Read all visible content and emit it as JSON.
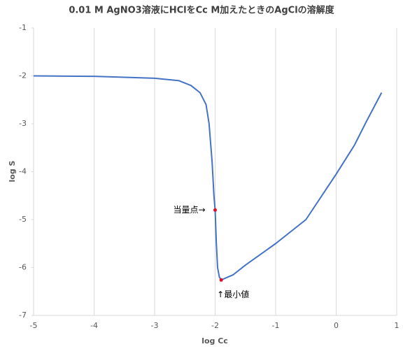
{
  "chart_data": {
    "type": "line",
    "title": "0.01 M AgNO3溶液にHClをCc M加えたときのAgClの溶解度",
    "x_label": "log Cc",
    "y_label": "log S",
    "xlim": [
      -5,
      1
    ],
    "xticks": [
      -5,
      -4,
      -3,
      -2,
      -1,
      0,
      1
    ],
    "ylim": [
      -7,
      -1
    ],
    "yticks": [
      -7,
      -6,
      -5,
      -4,
      -3,
      -2,
      -1
    ],
    "grid": true,
    "series": [
      {
        "color": "#4472c4",
        "x": [
          -5,
          -4,
          -3,
          -2.6,
          -2.4,
          -2.25,
          -2.15,
          -2.1,
          -2.05,
          -2.02,
          -2.0,
          -1.98,
          -1.96,
          -1.93,
          -1.9,
          -1.7,
          -1.5,
          -1,
          -0.5,
          0,
          0.3,
          0.5,
          0.75
        ],
        "values": [
          -2.0,
          -2.01,
          -2.05,
          -2.1,
          -2.2,
          -2.35,
          -2.6,
          -3.0,
          -3.8,
          -4.5,
          -4.8,
          -5.5,
          -6.0,
          -6.2,
          -6.26,
          -6.15,
          -5.95,
          -5.5,
          -5.0,
          -4.05,
          -3.45,
          -2.95,
          -2.35
        ]
      }
    ],
    "markers": [
      {
        "x": -2.0,
        "y": -4.8,
        "color": "#e0102a",
        "label": "当量点→"
      },
      {
        "x": -1.9,
        "y": -6.26,
        "color": "#e0102a",
        "label": "↑最小値"
      }
    ]
  }
}
